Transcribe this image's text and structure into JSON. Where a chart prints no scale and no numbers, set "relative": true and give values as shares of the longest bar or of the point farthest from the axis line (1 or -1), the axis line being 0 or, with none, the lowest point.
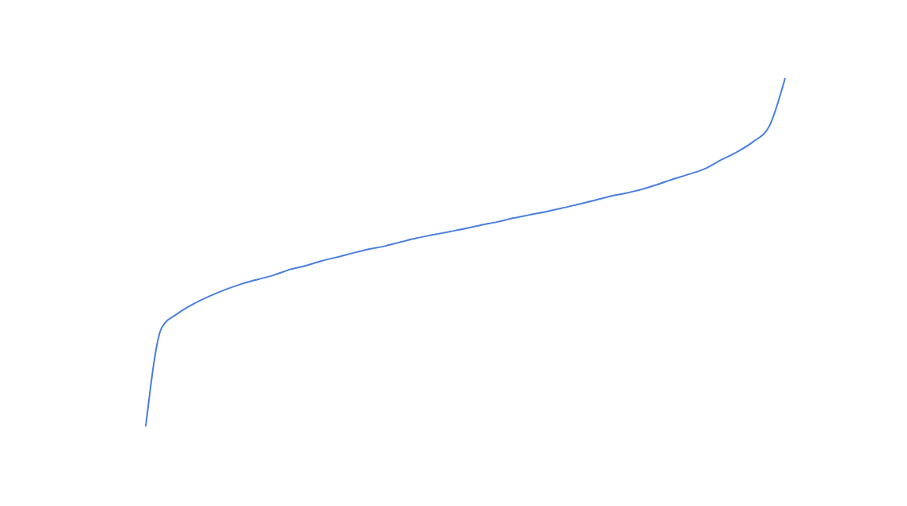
{
  "chart_data": {
    "type": "line",
    "relative": true,
    "legend": false,
    "marker": "none",
    "line_style": "solid",
    "tick_labels": false,
    "categories": [
      null,
      null,
      null,
      null,
      null,
      null,
      null,
      null,
      null,
      null,
      null,
      null,
      null,
      null,
      null,
      null,
      null,
      null,
      null,
      null,
      null,
      null,
      null,
      null,
      null,
      null,
      null,
      null,
      null,
      null,
      null,
      null,
      null,
      null,
      null,
      null,
      null,
      null,
      null,
      null,
      null
    ],
    "series": [
      {
        "color": "#4a7fdf",
        "values": [
          0,
          0.283,
          0.324,
          0.352,
          0.374,
          0.393,
          0.409,
          0.422,
          0.434,
          0.45,
          0.461,
          0.475,
          0.486,
          0.498,
          0.509,
          0.518,
          0.53,
          0.541,
          0.55,
          0.559,
          0.568,
          0.578,
          0.587,
          0.598,
          0.607,
          0.616,
          0.626,
          0.637,
          0.648,
          0.66,
          0.669,
          0.68,
          0.694,
          0.71,
          0.724,
          0.74,
          0.765,
          0.788,
          0.817,
          0.861,
          1
        ]
      }
    ]
  }
}
